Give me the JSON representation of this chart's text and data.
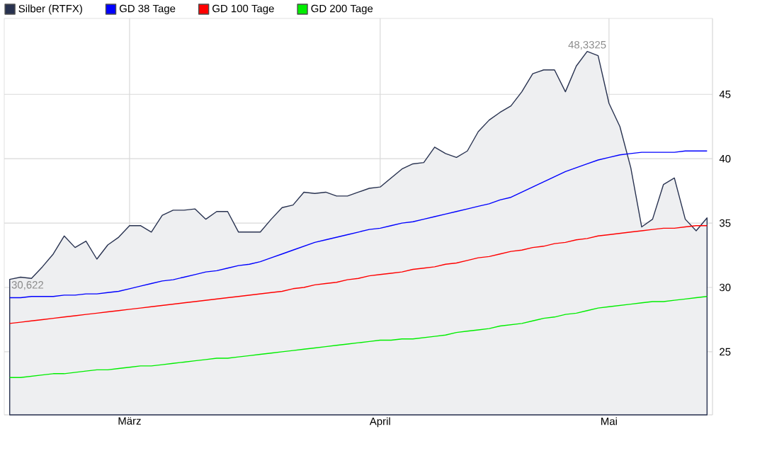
{
  "chart_data": {
    "type": "line",
    "categories": [
      null,
      null,
      null,
      null,
      null,
      null,
      null,
      null,
      null,
      null,
      null,
      "März",
      null,
      null,
      null,
      null,
      null,
      null,
      null,
      null,
      null,
      null,
      null,
      null,
      null,
      null,
      null,
      null,
      null,
      null,
      null,
      null,
      null,
      null,
      "April",
      null,
      null,
      null,
      null,
      null,
      null,
      null,
      null,
      null,
      null,
      null,
      null,
      null,
      null,
      null,
      null,
      null,
      null,
      null,
      null,
      "Mai",
      null,
      null,
      null,
      null,
      null,
      null,
      null,
      null,
      null
    ],
    "series": [
      {
        "name": "Silber (RTFX)",
        "type": "area",
        "color": "#283250",
        "values": [
          30.622,
          30.8,
          30.7,
          31.6,
          32.6,
          34.0,
          33.1,
          33.6,
          32.2,
          33.3,
          33.9,
          34.8,
          34.8,
          34.3,
          35.6,
          36.0,
          36.0,
          36.1,
          35.3,
          35.9,
          35.9,
          34.3,
          34.3,
          34.3,
          35.3,
          36.2,
          36.4,
          37.4,
          37.3,
          37.4,
          37.1,
          37.1,
          37.4,
          37.7,
          37.8,
          38.5,
          39.2,
          39.6,
          39.7,
          40.9,
          40.4,
          40.1,
          40.6,
          42.1,
          43.0,
          43.6,
          44.1,
          45.2,
          46.6,
          46.9,
          46.9,
          45.2,
          47.2,
          48.3325,
          48.0,
          44.3,
          42.5,
          39.3,
          34.7,
          35.3,
          38.0,
          38.5,
          35.3,
          34.4,
          35.4
        ]
      },
      {
        "name": "GD 38 Tage",
        "color": "#0000ff",
        "values": [
          29.2,
          29.2,
          29.3,
          29.3,
          29.3,
          29.4,
          29.4,
          29.5,
          29.5,
          29.6,
          29.7,
          29.9,
          30.1,
          30.3,
          30.5,
          30.6,
          30.8,
          31.0,
          31.2,
          31.3,
          31.5,
          31.7,
          31.8,
          32.0,
          32.3,
          32.6,
          32.9,
          33.2,
          33.5,
          33.7,
          33.9,
          34.1,
          34.3,
          34.5,
          34.6,
          34.8,
          35.0,
          35.1,
          35.3,
          35.5,
          35.7,
          35.9,
          36.1,
          36.3,
          36.5,
          36.8,
          37.0,
          37.4,
          37.8,
          38.2,
          38.6,
          39.0,
          39.3,
          39.6,
          39.9,
          40.1,
          40.3,
          40.4,
          40.5,
          40.5,
          40.5,
          40.5,
          40.6,
          40.6,
          40.6
        ]
      },
      {
        "name": "GD 100 Tage",
        "color": "#ff0000",
        "values": [
          27.2,
          27.3,
          27.4,
          27.5,
          27.6,
          27.7,
          27.8,
          27.9,
          28.0,
          28.1,
          28.2,
          28.3,
          28.4,
          28.5,
          28.6,
          28.7,
          28.8,
          28.9,
          29.0,
          29.1,
          29.2,
          29.3,
          29.4,
          29.5,
          29.6,
          29.7,
          29.9,
          30.0,
          30.2,
          30.3,
          30.4,
          30.6,
          30.7,
          30.9,
          31.0,
          31.1,
          31.2,
          31.4,
          31.5,
          31.6,
          31.8,
          31.9,
          32.1,
          32.3,
          32.4,
          32.6,
          32.8,
          32.9,
          33.1,
          33.2,
          33.4,
          33.5,
          33.7,
          33.8,
          34.0,
          34.1,
          34.2,
          34.3,
          34.4,
          34.5,
          34.6,
          34.6,
          34.7,
          34.8,
          34.8
        ]
      },
      {
        "name": "GD 200 Tage",
        "color": "#00ee00",
        "values": [
          23.0,
          23.0,
          23.1,
          23.2,
          23.3,
          23.3,
          23.4,
          23.5,
          23.6,
          23.6,
          23.7,
          23.8,
          23.9,
          23.9,
          24.0,
          24.1,
          24.2,
          24.3,
          24.4,
          24.5,
          24.5,
          24.6,
          24.7,
          24.8,
          24.9,
          25.0,
          25.1,
          25.2,
          25.3,
          25.4,
          25.5,
          25.6,
          25.7,
          25.8,
          25.9,
          25.9,
          26.0,
          26.0,
          26.1,
          26.2,
          26.3,
          26.5,
          26.6,
          26.7,
          26.8,
          27.0,
          27.1,
          27.2,
          27.4,
          27.6,
          27.7,
          27.9,
          28.0,
          28.2,
          28.4,
          28.5,
          28.6,
          28.7,
          28.8,
          28.9,
          28.9,
          29.0,
          29.1,
          29.2,
          29.3
        ]
      }
    ],
    "ylim": [
      20.1,
      50.9
    ],
    "yticks": [
      25,
      30,
      35,
      40,
      45
    ],
    "grid": true,
    "legend": "top left",
    "annotations": [
      {
        "text": "48,3325",
        "y": 48.3325
      },
      {
        "text": "30,622",
        "y": 30.622
      }
    ]
  }
}
